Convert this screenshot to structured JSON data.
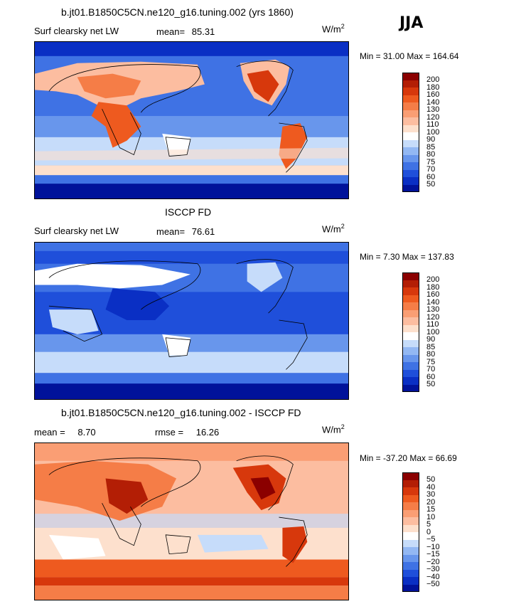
{
  "season": "JJA",
  "units_base": "W/m",
  "units_exp": "2",
  "panels": [
    {
      "title": "b.jt01.B1850C5CN.ne120_g16.tuning.002 (yrs 1860)",
      "subtitle": "Surf clearsky net LW",
      "stat_label": "mean=",
      "stat_value": "85.31",
      "minmax": "Min =  31.00 Max = 164.64",
      "colorbar": {
        "labels": [
          "200",
          "180",
          "160",
          "140",
          "130",
          "120",
          "110",
          "100",
          "90",
          "85",
          "80",
          "75",
          "70",
          "60",
          "50"
        ],
        "colors": [
          "#8b0000",
          "#b31e05",
          "#d7380c",
          "#ee5a1f",
          "#f57d47",
          "#fa9e74",
          "#fcbda0",
          "#fde0cd",
          "#ffffff",
          "#c6dcfa",
          "#93b8f3",
          "#6896ec",
          "#3f72e4",
          "#1f4fda",
          "#0a2fc4",
          "#00129a"
        ]
      }
    },
    {
      "title": "ISCCP FD",
      "subtitle": "Surf clearsky net LW",
      "stat_label": "mean=",
      "stat_value": "76.61",
      "minmax": "Min =   7.30 Max = 137.83",
      "colorbar": {
        "labels": [
          "200",
          "180",
          "160",
          "140",
          "130",
          "120",
          "110",
          "100",
          "90",
          "85",
          "80",
          "75",
          "70",
          "60",
          "50"
        ],
        "colors": [
          "#8b0000",
          "#b31e05",
          "#d7380c",
          "#ee5a1f",
          "#f57d47",
          "#fa9e74",
          "#fcbda0",
          "#fde0cd",
          "#ffffff",
          "#c6dcfa",
          "#93b8f3",
          "#6896ec",
          "#3f72e4",
          "#1f4fda",
          "#0a2fc4",
          "#00129a"
        ]
      }
    },
    {
      "title": "b.jt01.B1850C5CN.ne120_g16.tuning.002 - ISCCP FD",
      "stat_label": "mean =",
      "stat_value": "8.70",
      "stat2_label": "rmse =",
      "stat2_value": "16.26",
      "minmax": "Min = -37.20 Max =  66.69",
      "colorbar": {
        "labels": [
          "50",
          "40",
          "30",
          "20",
          "15",
          "10",
          "5",
          "0",
          "−5",
          "−10",
          "−15",
          "−20",
          "−30",
          "−40",
          "−50"
        ],
        "colors": [
          "#8b0000",
          "#b31e05",
          "#d7380c",
          "#ee5a1f",
          "#f57d47",
          "#fa9e74",
          "#fcbda0",
          "#fde0cd",
          "#ffffff",
          "#c6dcfa",
          "#93b8f3",
          "#6896ec",
          "#3f72e4",
          "#1f4fda",
          "#0a2fc4",
          "#00129a"
        ]
      }
    }
  ]
}
